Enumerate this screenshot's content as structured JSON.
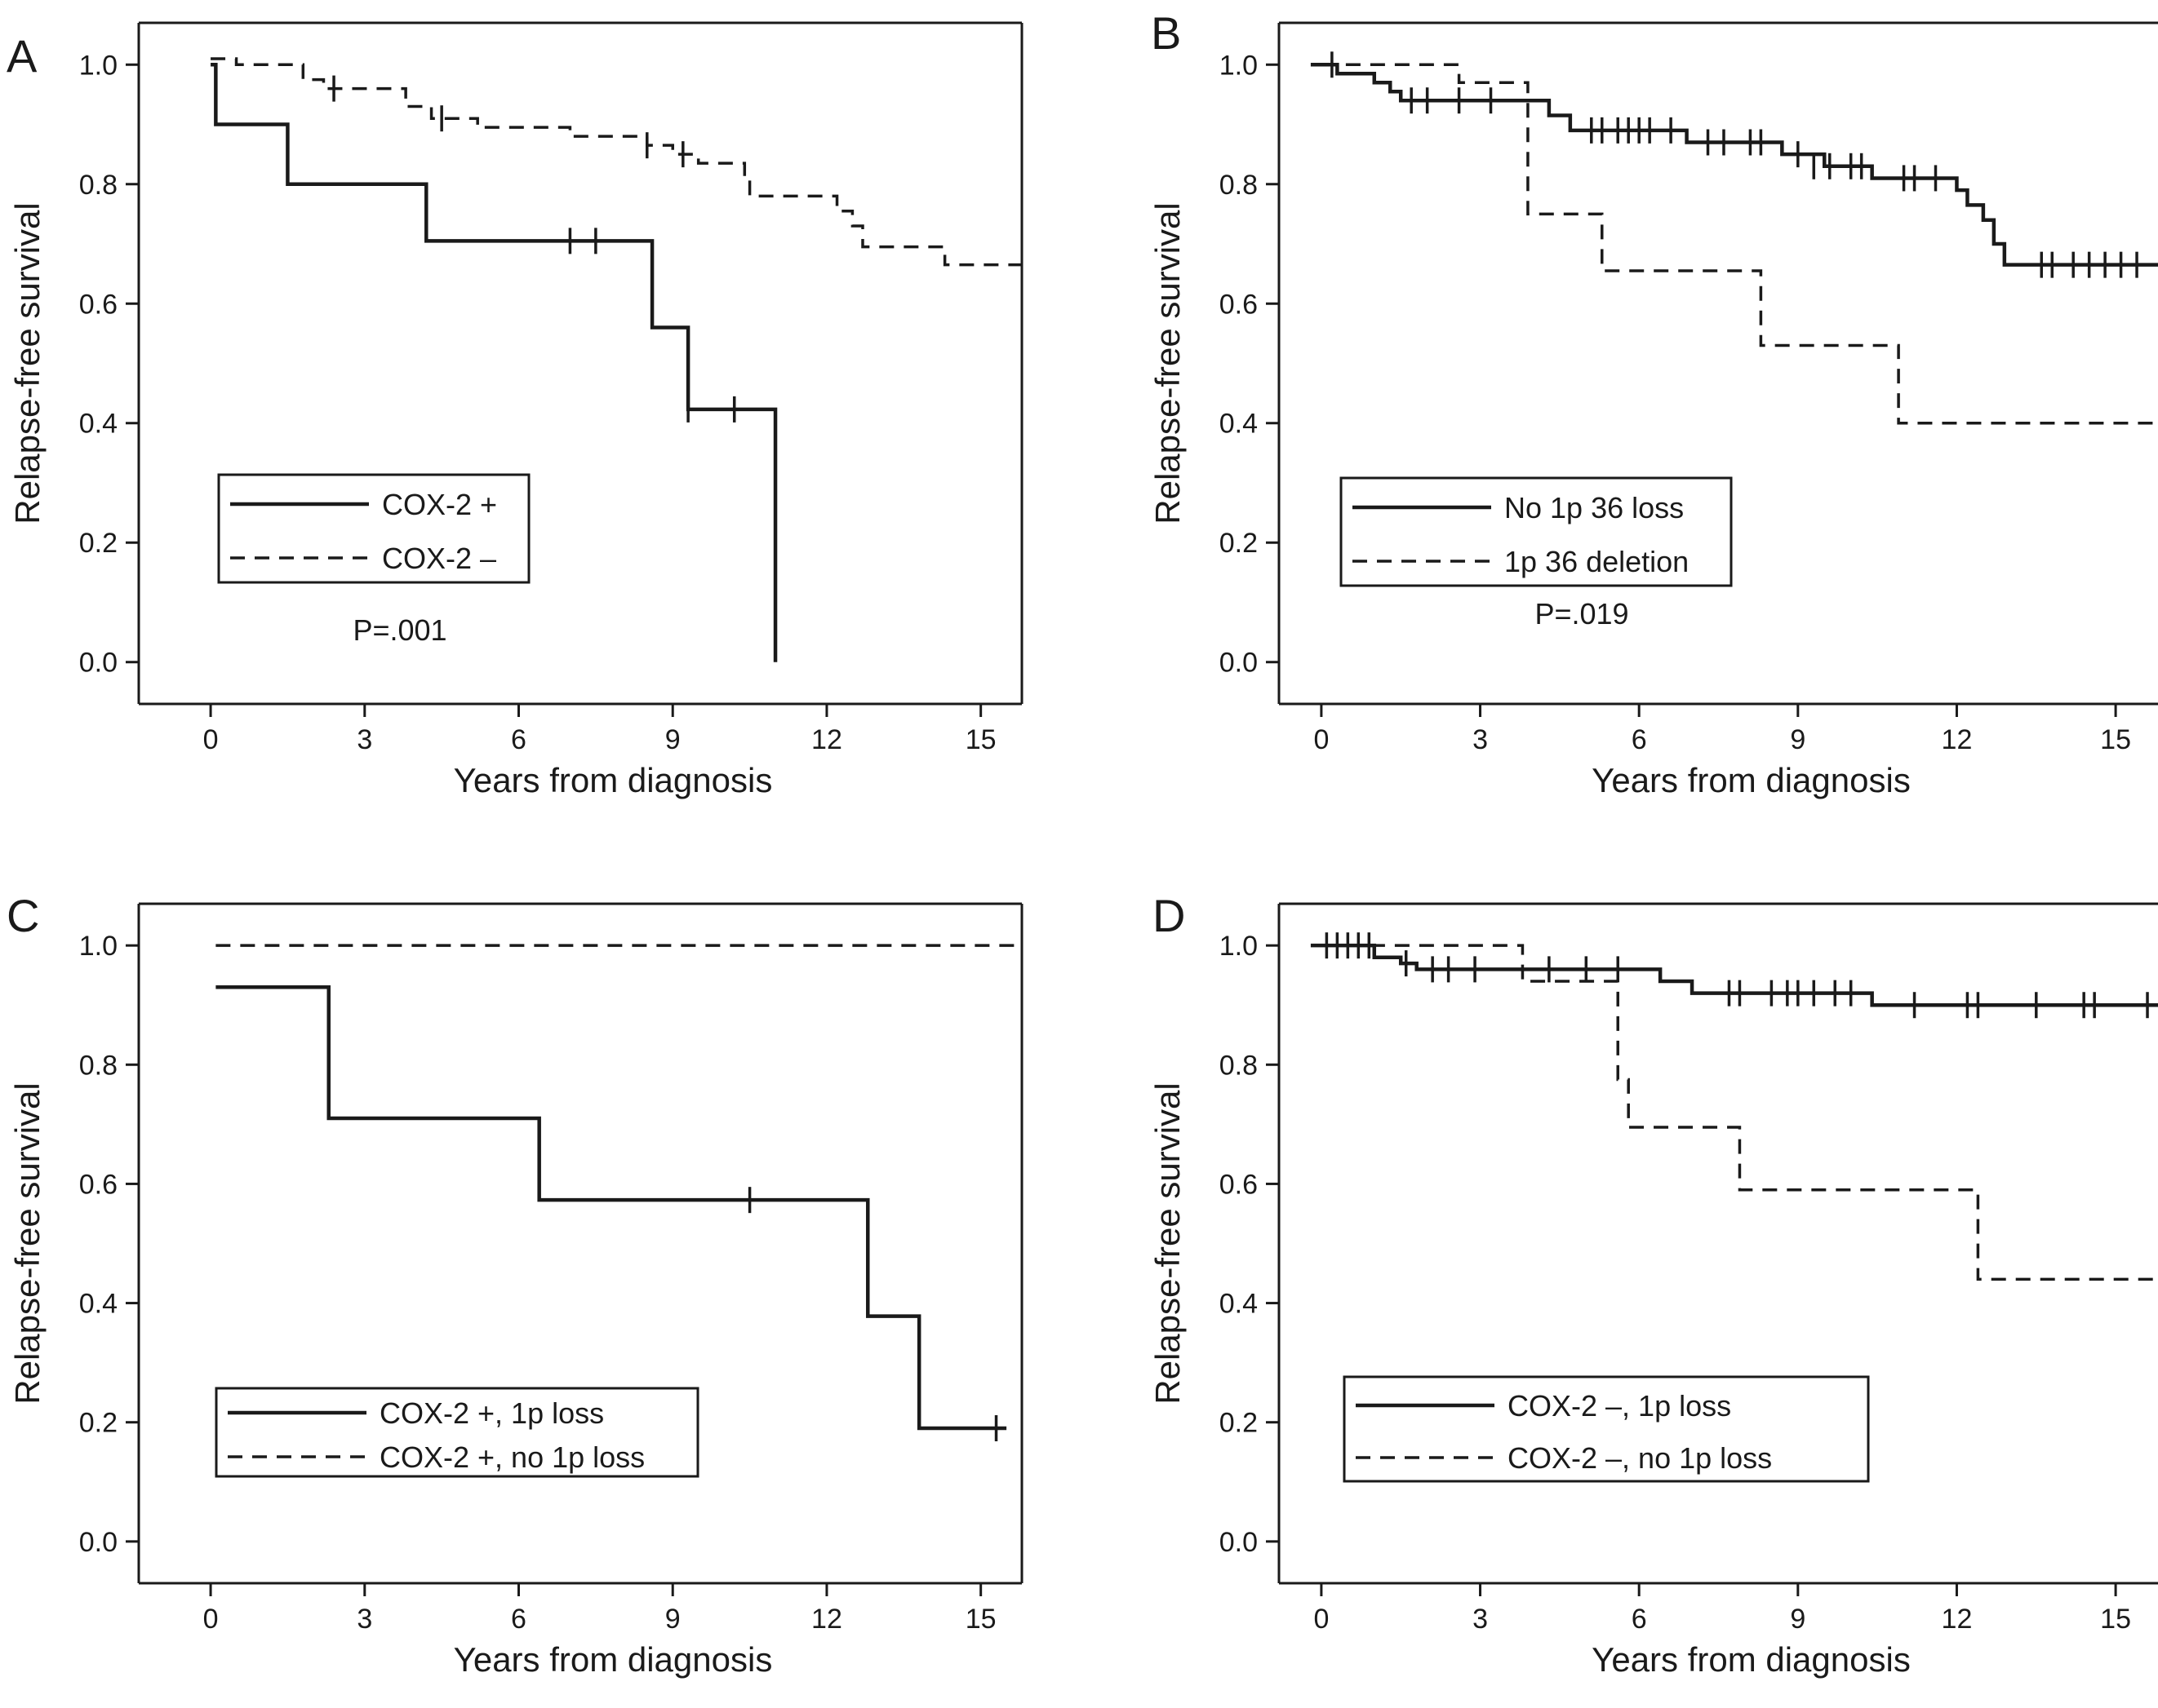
{
  "chart_data": [
    {
      "panel": "A",
      "type": "line",
      "xlabel": "Years from diagnosis",
      "ylabel": "Relapse-free survival",
      "xlim": [
        -1.4,
        15.8
      ],
      "ylim": [
        -0.07,
        1.07
      ],
      "xticks": [
        0,
        3,
        6,
        9,
        12,
        15
      ],
      "yticks": [
        "0.0",
        "0.2",
        "0.4",
        "0.6",
        "0.8",
        "1.0"
      ],
      "pvalue": "P=.001",
      "series": [
        {
          "name": "COX-2 +",
          "style": "solid",
          "steps": [
            [
              0,
              1.0
            ],
            [
              0.1,
              0.9
            ],
            [
              1.5,
              0.8
            ],
            [
              4.2,
              0.705
            ],
            [
              8.6,
              0.56
            ],
            [
              9.3,
              0.423
            ],
            [
              11.0,
              0.0
            ]
          ],
          "censored": [
            [
              7.0,
              0.705
            ],
            [
              7.5,
              0.705
            ],
            [
              9.3,
              0.423
            ],
            [
              10.2,
              0.423
            ]
          ]
        },
        {
          "name": "COX-2 –",
          "style": "dashed",
          "steps": [
            [
              0,
              1.01
            ],
            [
              0.5,
              1.0
            ],
            [
              1.8,
              0.975
            ],
            [
              2.2,
              0.96
            ],
            [
              3.8,
              0.93
            ],
            [
              4.3,
              0.91
            ],
            [
              5.2,
              0.895
            ],
            [
              7.0,
              0.88
            ],
            [
              8.5,
              0.865
            ],
            [
              9.0,
              0.85
            ],
            [
              9.5,
              0.835
            ],
            [
              10.4,
              0.81
            ],
            [
              10.5,
              0.78
            ],
            [
              12.2,
              0.755
            ],
            [
              12.5,
              0.73
            ],
            [
              12.7,
              0.695
            ],
            [
              14.3,
              0.665
            ]
          ],
          "end_x": 15.8,
          "censored": [
            [
              2.4,
              0.96
            ],
            [
              4.5,
              0.91
            ],
            [
              8.5,
              0.865
            ],
            [
              9.2,
              0.85
            ]
          ]
        }
      ]
    },
    {
      "panel": "B",
      "type": "line",
      "xlabel": "Years from diagnosis",
      "ylabel": "Relapse-free survival",
      "xlim": [
        -0.8,
        15.8
      ],
      "ylim": [
        -0.07,
        1.07
      ],
      "xticks": [
        0,
        3,
        6,
        9,
        12,
        15
      ],
      "yticks": [
        "0.0",
        "0.2",
        "0.4",
        "0.6",
        "0.8",
        "1.0"
      ],
      "pvalue": "P=.019",
      "series": [
        {
          "name": "No 1p 36 loss",
          "style": "solid",
          "steps": [
            [
              -0.2,
              1.0
            ],
            [
              0.3,
              0.985
            ],
            [
              1.0,
              0.97
            ],
            [
              1.3,
              0.955
            ],
            [
              1.5,
              0.94
            ],
            [
              4.3,
              0.915
            ],
            [
              4.7,
              0.89
            ],
            [
              6.9,
              0.87
            ],
            [
              8.7,
              0.85
            ],
            [
              9.5,
              0.83
            ],
            [
              10.4,
              0.81
            ],
            [
              12.0,
              0.79
            ],
            [
              12.2,
              0.765
            ],
            [
              12.5,
              0.74
            ],
            [
              12.7,
              0.7
            ],
            [
              12.9,
              0.665
            ]
          ],
          "end_x": 15.8,
          "censored": [
            [
              0.2,
              1.0
            ],
            [
              1.7,
              0.94
            ],
            [
              2.0,
              0.94
            ],
            [
              2.6,
              0.94
            ],
            [
              3.2,
              0.94
            ],
            [
              5.1,
              0.89
            ],
            [
              5.3,
              0.89
            ],
            [
              5.6,
              0.89
            ],
            [
              5.8,
              0.89
            ],
            [
              6.0,
              0.89
            ],
            [
              6.2,
              0.89
            ],
            [
              6.6,
              0.89
            ],
            [
              7.3,
              0.87
            ],
            [
              7.6,
              0.87
            ],
            [
              8.1,
              0.87
            ],
            [
              8.3,
              0.87
            ],
            [
              9.0,
              0.85
            ],
            [
              9.3,
              0.83
            ],
            [
              9.6,
              0.83
            ],
            [
              10.0,
              0.83
            ],
            [
              10.2,
              0.83
            ],
            [
              11.0,
              0.81
            ],
            [
              11.2,
              0.81
            ],
            [
              11.6,
              0.81
            ],
            [
              13.6,
              0.665
            ],
            [
              13.8,
              0.665
            ],
            [
              14.2,
              0.665
            ],
            [
              14.5,
              0.665
            ],
            [
              14.8,
              0.665
            ],
            [
              15.1,
              0.665
            ],
            [
              15.4,
              0.665
            ]
          ]
        },
        {
          "name": "1p 36 deletion",
          "style": "dashed",
          "steps": [
            [
              0,
              1.0
            ],
            [
              2.6,
              0.97
            ],
            [
              3.9,
              0.75
            ],
            [
              5.3,
              0.655
            ],
            [
              8.3,
              0.53
            ],
            [
              10.9,
              0.4
            ]
          ],
          "end_x": 15.8,
          "censored": []
        }
      ]
    },
    {
      "panel": "C",
      "type": "line",
      "xlabel": "Years from diagnosis",
      "ylabel": "Relapse-free survival",
      "xlim": [
        -1.4,
        15.8
      ],
      "ylim": [
        -0.07,
        1.07
      ],
      "xticks": [
        0,
        3,
        6,
        9,
        12,
        15
      ],
      "yticks": [
        "0.0",
        "0.2",
        "0.4",
        "0.6",
        "0.8",
        "1.0"
      ],
      "pvalue": "",
      "series": [
        {
          "name": "COX-2 +, 1p loss",
          "style": "solid",
          "steps": [
            [
              0.1,
              0.93
            ],
            [
              2.3,
              0.71
            ],
            [
              6.4,
              0.573
            ],
            [
              12.8,
              0.378
            ],
            [
              13.8,
              0.19
            ]
          ],
          "end_x": 15.5,
          "censored": [
            [
              10.5,
              0.573
            ],
            [
              15.3,
              0.19
            ]
          ]
        },
        {
          "name": "COX-2 +, no 1p loss",
          "style": "dashed",
          "steps": [
            [
              0.1,
              1.0
            ]
          ],
          "end_x": 15.8,
          "censored": []
        }
      ]
    },
    {
      "panel": "D",
      "type": "line",
      "xlabel": "Years from diagnosis",
      "ylabel": "Relapse-free survival",
      "xlim": [
        -0.8,
        15.8
      ],
      "ylim": [
        -0.07,
        1.07
      ],
      "xticks": [
        0,
        3,
        6,
        9,
        12,
        15
      ],
      "yticks": [
        "0.0",
        "0.2",
        "0.4",
        "0.6",
        "0.8",
        "1.0"
      ],
      "pvalue": "",
      "series": [
        {
          "name": "COX-2 –, 1p loss",
          "style": "solid",
          "steps": [
            [
              -0.2,
              1.0
            ],
            [
              1.0,
              0.98
            ],
            [
              1.5,
              0.97
            ],
            [
              1.8,
              0.96
            ],
            [
              6.4,
              0.94
            ],
            [
              7.0,
              0.92
            ],
            [
              10.4,
              0.9
            ]
          ],
          "end_x": 15.8,
          "censored": [
            [
              0.1,
              1.0
            ],
            [
              0.3,
              1.0
            ],
            [
              0.5,
              1.0
            ],
            [
              0.7,
              1.0
            ],
            [
              0.9,
              1.0
            ],
            [
              1.6,
              0.97
            ],
            [
              2.1,
              0.96
            ],
            [
              2.4,
              0.96
            ],
            [
              2.9,
              0.96
            ],
            [
              4.3,
              0.96
            ],
            [
              5.0,
              0.96
            ],
            [
              5.6,
              0.96
            ],
            [
              7.7,
              0.92
            ],
            [
              7.9,
              0.92
            ],
            [
              8.5,
              0.92
            ],
            [
              8.8,
              0.92
            ],
            [
              9.0,
              0.92
            ],
            [
              9.3,
              0.92
            ],
            [
              9.7,
              0.92
            ],
            [
              10.0,
              0.92
            ],
            [
              11.2,
              0.9
            ],
            [
              12.2,
              0.9
            ],
            [
              12.4,
              0.9
            ],
            [
              13.5,
              0.9
            ],
            [
              14.4,
              0.9
            ],
            [
              14.6,
              0.9
            ],
            [
              15.6,
              0.9
            ]
          ]
        },
        {
          "name": "COX-2 –, no 1p loss",
          "style": "dashed",
          "steps": [
            [
              0,
              1.0
            ],
            [
              3.8,
              0.94
            ],
            [
              5.6,
              0.775
            ],
            [
              5.8,
              0.695
            ],
            [
              7.9,
              0.59
            ],
            [
              12.4,
              0.44
            ]
          ],
          "end_x": 15.8,
          "censored": []
        }
      ]
    }
  ]
}
